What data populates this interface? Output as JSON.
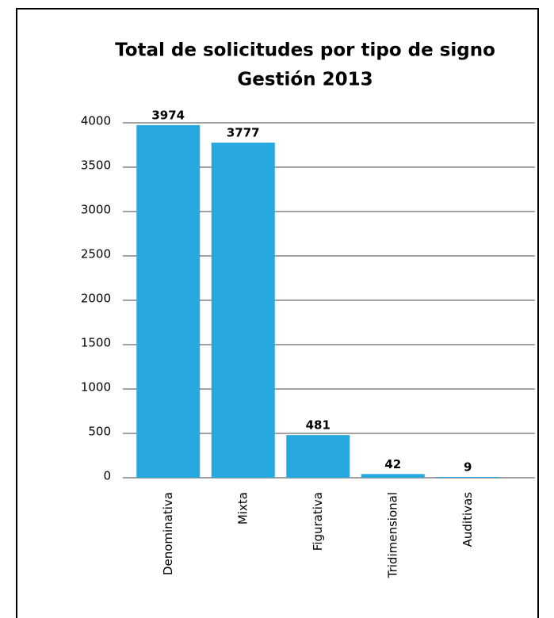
{
  "chart_data": {
    "type": "bar",
    "title": "Total de solicitudes por tipo de signo",
    "subtitle": "Gestión 2013",
    "categories": [
      "Denominativa",
      "Mixta",
      "Figurativa",
      "Tridimensional",
      "Auditivas"
    ],
    "values": [
      3974,
      3777,
      481,
      42,
      9
    ],
    "color": "#29a8e0",
    "ylim": [
      0,
      4000
    ],
    "yticks": [
      0,
      500,
      1000,
      1500,
      2000,
      2500,
      3000,
      3500,
      4000
    ],
    "grid": true
  }
}
